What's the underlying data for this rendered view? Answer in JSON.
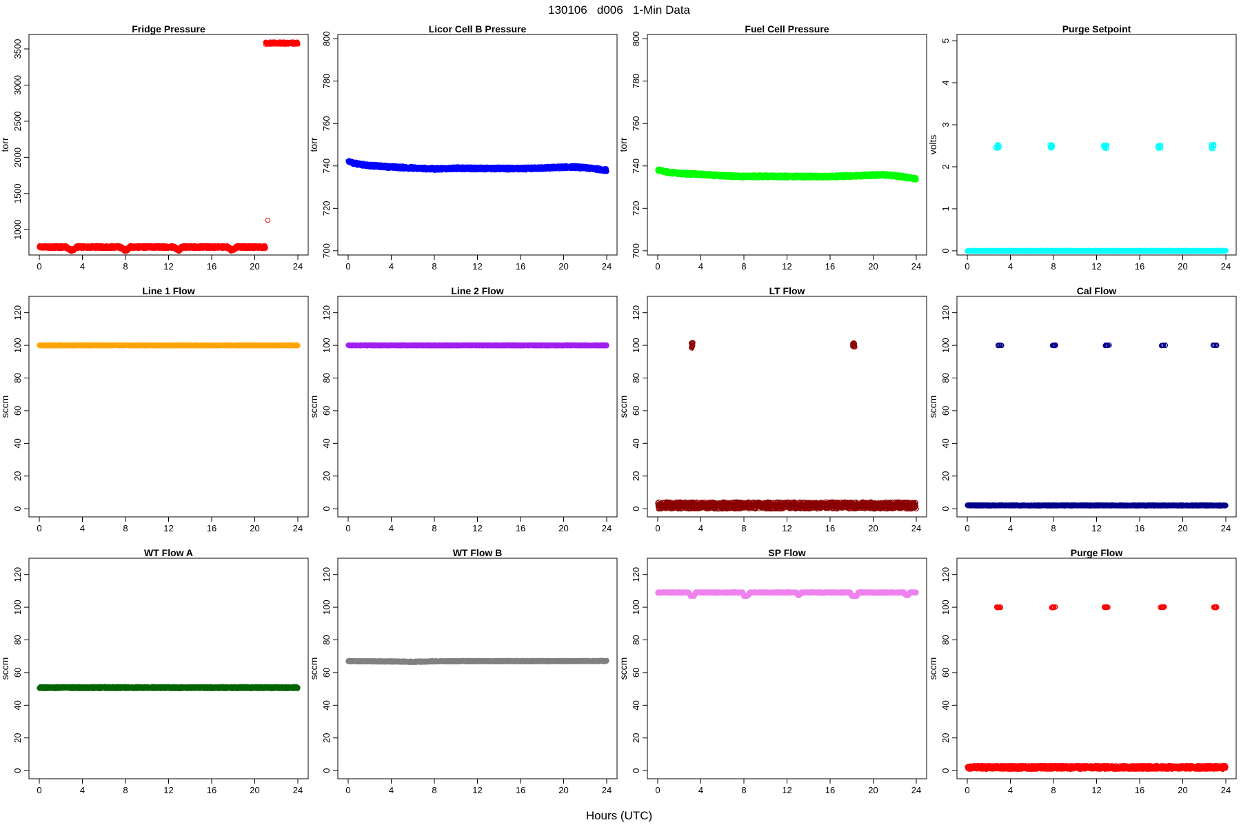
{
  "page": {
    "title": "130106   d006   1-Min Data",
    "xlabel": "Hours (UTC)"
  },
  "chart_data": [
    {
      "type": "scatter",
      "title": "Fridge Pressure",
      "ylabel": "torr",
      "xlim": [
        0,
        24
      ],
      "ylim": [
        650,
        3700
      ],
      "xticks": [
        0,
        4,
        8,
        12,
        16,
        20,
        24
      ],
      "yticks": [
        1000,
        1500,
        2000,
        2500,
        3000,
        3500
      ],
      "color": "#ff0000",
      "series": [
        {
          "kind": "band",
          "x": [
            0,
            2.5,
            2.8,
            3.0,
            3.2,
            3.5,
            7.5,
            7.9,
            8.1,
            8.4,
            12.5,
            12.8,
            13.0,
            13.2,
            17.5,
            17.8,
            18.0,
            18.3,
            21.0
          ],
          "y": [
            760,
            760,
            730,
            710,
            730,
            760,
            760,
            720,
            720,
            760,
            760,
            730,
            720,
            760,
            760,
            720,
            720,
            760,
            760
          ],
          "spread": 20
        },
        {
          "kind": "band",
          "x": [
            21.0,
            24.0
          ],
          "y": [
            3580,
            3580
          ],
          "spread": 15
        },
        {
          "kind": "point",
          "x": [
            21.2
          ],
          "y": [
            1130
          ]
        }
      ]
    },
    {
      "type": "scatter",
      "title": "Licor Cell B Pressure",
      "ylabel": "torr",
      "xlim": [
        0,
        24
      ],
      "ylim": [
        698,
        802
      ],
      "xticks": [
        0,
        4,
        8,
        12,
        16,
        20,
        24
      ],
      "yticks": [
        700,
        720,
        740,
        760,
        780,
        800
      ],
      "color": "#0000ff",
      "series": [
        {
          "kind": "band",
          "x": [
            0,
            1,
            2,
            4,
            6,
            8,
            10,
            12,
            14,
            16,
            18,
            20,
            21,
            22,
            23,
            24
          ],
          "y": [
            742,
            740.8,
            740.2,
            739.5,
            739.0,
            738.6,
            738.9,
            738.8,
            738.8,
            738.7,
            739.0,
            739.4,
            739.5,
            739.1,
            738.6,
            738.0
          ],
          "spread": 0.7
        }
      ]
    },
    {
      "type": "scatter",
      "title": "Fuel Cell Pressure",
      "ylabel": "torr",
      "xlim": [
        0,
        24
      ],
      "ylim": [
        698,
        802
      ],
      "xticks": [
        0,
        4,
        8,
        12,
        16,
        20,
        24
      ],
      "yticks": [
        700,
        720,
        740,
        760,
        780,
        800
      ],
      "color": "#00ff00",
      "series": [
        {
          "kind": "band",
          "x": [
            0,
            1,
            2,
            4,
            6,
            8,
            10,
            12,
            14,
            16,
            18,
            20,
            21,
            22,
            23,
            24
          ],
          "y": [
            738,
            737,
            736.5,
            736.0,
            735.4,
            735.0,
            735.1,
            735.0,
            735.0,
            735.0,
            735.3,
            735.7,
            735.8,
            735.4,
            734.7,
            734.0
          ],
          "spread": 0.7
        }
      ]
    },
    {
      "type": "scatter",
      "title": "Purge Setpoint",
      "ylabel": "volts",
      "xlim": [
        0,
        24
      ],
      "ylim": [
        -0.1,
        5.15
      ],
      "xticks": [
        0,
        4,
        8,
        12,
        16,
        20,
        24
      ],
      "yticks": [
        0,
        1,
        2,
        3,
        4,
        5
      ],
      "color": "#00ffff",
      "series": [
        {
          "kind": "band",
          "x": [
            0,
            24
          ],
          "y": [
            0,
            0
          ],
          "spread": 0.01
        },
        {
          "kind": "cluster",
          "x": [
            2.8,
            7.8,
            12.8,
            17.8,
            22.8
          ],
          "y": [
            2.48,
            2.48,
            2.47,
            2.48,
            2.48
          ],
          "width": 0.35,
          "spread": 0.05
        }
      ]
    },
    {
      "type": "scatter",
      "title": "Line 1 Flow",
      "ylabel": "sccm",
      "xlim": [
        0,
        24
      ],
      "ylim": [
        -5,
        130
      ],
      "xticks": [
        0,
        4,
        8,
        12,
        16,
        20,
        24
      ],
      "yticks": [
        0,
        20,
        40,
        60,
        80,
        100,
        120
      ],
      "color": "#ffa500",
      "series": [
        {
          "kind": "band",
          "x": [
            0,
            24
          ],
          "y": [
            100,
            100
          ],
          "spread": 0.3
        }
      ]
    },
    {
      "type": "scatter",
      "title": "Line 2 Flow",
      "ylabel": "sccm",
      "xlim": [
        0,
        24
      ],
      "ylim": [
        -5,
        130
      ],
      "xticks": [
        0,
        4,
        8,
        12,
        16,
        20,
        24
      ],
      "yticks": [
        0,
        20,
        40,
        60,
        80,
        100,
        120
      ],
      "color": "#a020f0",
      "series": [
        {
          "kind": "band",
          "x": [
            0,
            24
          ],
          "y": [
            100,
            100
          ],
          "spread": 0.3
        }
      ]
    },
    {
      "type": "scatter",
      "title": "LT Flow",
      "ylabel": "sccm",
      "xlim": [
        0,
        24
      ],
      "ylim": [
        -5,
        130
      ],
      "xticks": [
        0,
        4,
        8,
        12,
        16,
        20,
        24
      ],
      "yticks": [
        0,
        20,
        40,
        60,
        80,
        100,
        120
      ],
      "color": "#8b0000",
      "series": [
        {
          "kind": "band",
          "x": [
            0,
            24
          ],
          "y": [
            2,
            2
          ],
          "spread": 2.2
        },
        {
          "kind": "cluster",
          "x": [
            3.2,
            18.2
          ],
          "y": [
            100,
            100
          ],
          "width": 0.2,
          "spread": 2
        }
      ]
    },
    {
      "type": "scatter",
      "title": "Cal Flow",
      "ylabel": "sccm",
      "xlim": [
        0,
        24
      ],
      "ylim": [
        -5,
        130
      ],
      "xticks": [
        0,
        4,
        8,
        12,
        16,
        20,
        24
      ],
      "yticks": [
        0,
        20,
        40,
        60,
        80,
        100,
        120
      ],
      "color": "#00008b",
      "series": [
        {
          "kind": "band",
          "x": [
            0,
            24
          ],
          "y": [
            2,
            2
          ],
          "spread": 0.3
        },
        {
          "kind": "cluster",
          "x": [
            3.0,
            8.0,
            13.0,
            18.2,
            23.0
          ],
          "y": [
            100,
            100,
            100,
            100,
            100
          ],
          "width": 0.4,
          "spread": 0.2
        }
      ]
    },
    {
      "type": "scatter",
      "title": "WT Flow A",
      "ylabel": "sccm",
      "xlim": [
        0,
        24
      ],
      "ylim": [
        -5,
        130
      ],
      "xticks": [
        0,
        4,
        8,
        12,
        16,
        20,
        24
      ],
      "yticks": [
        0,
        20,
        40,
        60,
        80,
        100,
        120
      ],
      "color": "#006400",
      "series": [
        {
          "kind": "band",
          "x": [
            0,
            24
          ],
          "y": [
            50.8,
            50.8
          ],
          "spread": 0.6
        }
      ]
    },
    {
      "type": "scatter",
      "title": "WT Flow B",
      "ylabel": "sccm",
      "xlim": [
        0,
        24
      ],
      "ylim": [
        -5,
        130
      ],
      "xticks": [
        0,
        4,
        8,
        12,
        16,
        20,
        24
      ],
      "yticks": [
        0,
        20,
        40,
        60,
        80,
        100,
        120
      ],
      "color": "#808080",
      "series": [
        {
          "kind": "band",
          "x": [
            0,
            4,
            6,
            8,
            12,
            16,
            20,
            24
          ],
          "y": [
            67,
            66.8,
            66.6,
            66.9,
            67.0,
            67.0,
            67.0,
            67.1
          ],
          "spread": 0.4
        }
      ]
    },
    {
      "type": "scatter",
      "title": "SP Flow",
      "ylabel": "sccm",
      "xlim": [
        0,
        24
      ],
      "ylim": [
        -5,
        130
      ],
      "xticks": [
        0,
        4,
        8,
        12,
        16,
        20,
        24
      ],
      "yticks": [
        0,
        20,
        40,
        60,
        80,
        100,
        120
      ],
      "color": "#ee82ee",
      "series": [
        {
          "kind": "band",
          "x": [
            0,
            2.9,
            3.0,
            3.4,
            3.5,
            7.9,
            8.0,
            8.4,
            8.5,
            12.9,
            13.0,
            13.2,
            13.3,
            17.9,
            18.0,
            18.5,
            18.6,
            22.9,
            23.0,
            23.3,
            23.4,
            24.0
          ],
          "y": [
            109,
            109,
            107,
            107,
            109,
            109,
            107,
            107,
            109,
            109,
            107.5,
            107.5,
            109,
            109,
            107,
            107,
            109,
            109,
            107.5,
            107.5,
            109,
            109
          ],
          "spread": 0.4
        }
      ]
    },
    {
      "type": "scatter",
      "title": "Purge Flow",
      "ylabel": "sccm",
      "xlim": [
        0,
        24
      ],
      "ylim": [
        -5,
        130
      ],
      "xticks": [
        0,
        4,
        8,
        12,
        16,
        20,
        24
      ],
      "yticks": [
        0,
        20,
        40,
        60,
        80,
        100,
        120
      ],
      "color": "#ff0000",
      "series": [
        {
          "kind": "band",
          "x": [
            0,
            24
          ],
          "y": [
            2,
            2
          ],
          "spread": 1.2
        },
        {
          "kind": "cluster",
          "x": [
            2.9,
            8.0,
            12.9,
            18.1,
            23.0
          ],
          "y": [
            100,
            100,
            100,
            100,
            100
          ],
          "width": 0.4,
          "spread": 0.3
        }
      ]
    }
  ]
}
